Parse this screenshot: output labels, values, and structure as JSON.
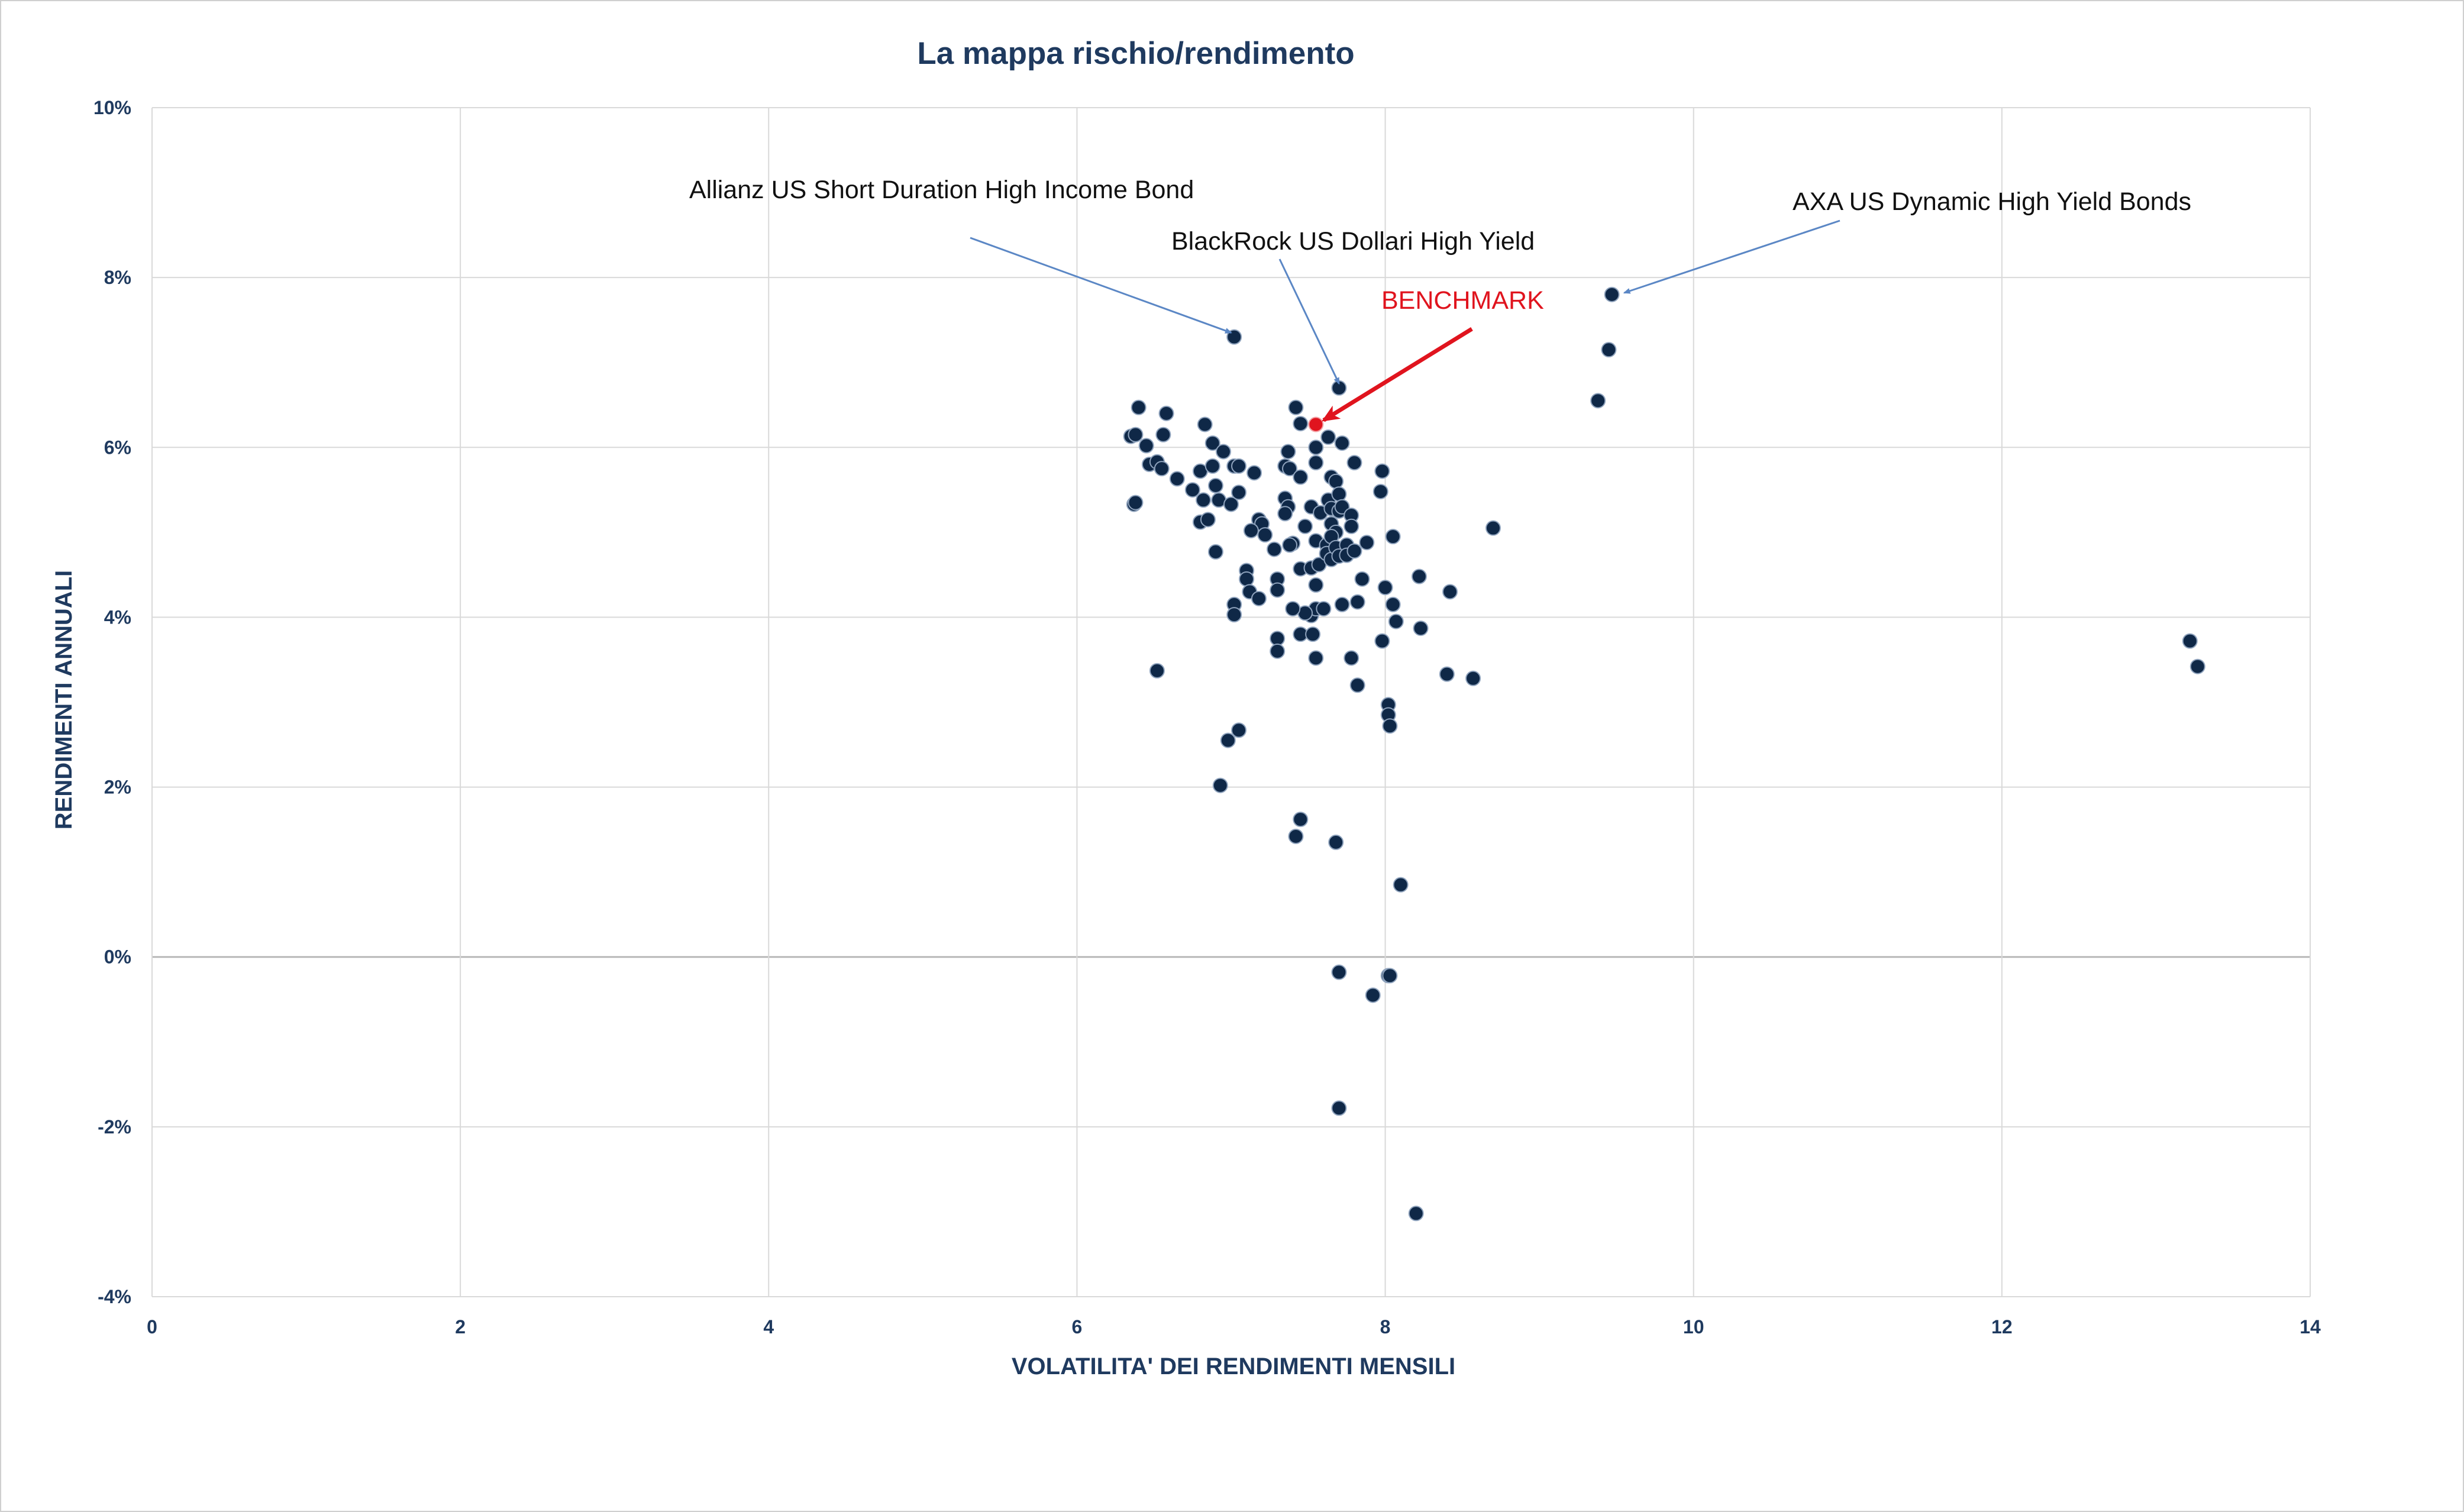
{
  "chart_data": {
    "type": "scatter",
    "title": "La mappa rischio/rendimento",
    "xlabel": "VOLATILITA' DEI RENDIMENTI MENSILI",
    "ylabel": "RENDIMENTI ANNUALI",
    "xlim": [
      0,
      14
    ],
    "ylim": [
      -4,
      10
    ],
    "x_ticks": [
      0,
      2,
      4,
      6,
      8,
      10,
      12,
      14
    ],
    "x_tick_labels": [
      "0",
      "2",
      "4",
      "6",
      "8",
      "10",
      "12",
      "14"
    ],
    "y_ticks": [
      -4,
      -2,
      0,
      2,
      4,
      6,
      8,
      10
    ],
    "y_tick_labels": [
      "-4%",
      "-2%",
      "0%",
      "2%",
      "4%",
      "6%",
      "8%",
      "10%"
    ],
    "grid": true,
    "colors": {
      "points": "#0f2847",
      "benchmark": "#e0141e",
      "annotation_arrow": "#5b87c5",
      "benchmark_arrow": "#e0141e",
      "text": "#1f3a5f"
    },
    "benchmark": {
      "x": 7.55,
      "y": 6.27,
      "label": "BENCHMARK"
    },
    "annotations": [
      {
        "text": "Allianz US Short Duration High Income Bond",
        "target": [
          7.0,
          7.35
        ]
      },
      {
        "text": "BlackRock US Dollari High Yield",
        "target": [
          7.7,
          6.75
        ]
      },
      {
        "text": "AXA US Dynamic High Yield Bonds",
        "target": [
          9.55,
          7.82
        ]
      },
      {
        "text": "BENCHMARK",
        "target": [
          7.6,
          6.32
        ]
      }
    ],
    "points": [
      [
        7.02,
        7.3
      ],
      [
        7.7,
        6.7
      ],
      [
        9.47,
        7.8
      ],
      [
        9.45,
        7.15
      ],
      [
        9.38,
        6.55
      ],
      [
        13.22,
        3.72
      ],
      [
        13.27,
        3.42
      ],
      [
        6.35,
        6.13
      ],
      [
        6.38,
        6.15
      ],
      [
        6.4,
        6.47
      ],
      [
        6.45,
        6.02
      ],
      [
        6.47,
        5.8
      ],
      [
        6.52,
        5.83
      ],
      [
        6.55,
        5.75
      ],
      [
        6.56,
        6.15
      ],
      [
        6.58,
        6.4
      ],
      [
        6.65,
        5.63
      ],
      [
        6.37,
        5.33
      ],
      [
        6.38,
        5.35
      ],
      [
        6.75,
        5.5
      ],
      [
        6.8,
        5.72
      ],
      [
        6.83,
        6.27
      ],
      [
        6.88,
        5.78
      ],
      [
        6.88,
        6.05
      ],
      [
        6.9,
        5.55
      ],
      [
        6.92,
        5.38
      ],
      [
        6.95,
        5.95
      ],
      [
        6.8,
        5.12
      ],
      [
        6.85,
        5.15
      ],
      [
        6.82,
        5.38
      ],
      [
        7.0,
        5.33
      ],
      [
        7.02,
        5.78
      ],
      [
        7.05,
        5.78
      ],
      [
        7.05,
        5.47
      ],
      [
        7.15,
        5.7
      ],
      [
        7.18,
        5.15
      ],
      [
        7.2,
        5.1
      ],
      [
        7.13,
        5.02
      ],
      [
        6.9,
        4.77
      ],
      [
        7.1,
        4.55
      ],
      [
        7.1,
        4.45
      ],
      [
        7.12,
        4.3
      ],
      [
        7.18,
        4.22
      ],
      [
        7.22,
        4.97
      ],
      [
        7.28,
        4.8
      ],
      [
        7.3,
        4.45
      ],
      [
        7.3,
        4.32
      ],
      [
        7.02,
        4.15
      ],
      [
        7.02,
        4.03
      ],
      [
        7.3,
        3.75
      ],
      [
        7.3,
        3.6
      ],
      [
        6.52,
        3.37
      ],
      [
        7.05,
        2.67
      ],
      [
        6.98,
        2.55
      ],
      [
        6.93,
        2.02
      ],
      [
        7.35,
        5.78
      ],
      [
        7.37,
        5.95
      ],
      [
        7.35,
        5.4
      ],
      [
        7.37,
        5.3
      ],
      [
        7.35,
        5.22
      ],
      [
        7.38,
        5.75
      ],
      [
        7.42,
        6.47
      ],
      [
        7.45,
        6.28
      ],
      [
        7.45,
        5.65
      ],
      [
        7.4,
        4.87
      ],
      [
        7.38,
        4.85
      ],
      [
        7.45,
        4.57
      ],
      [
        7.48,
        5.07
      ],
      [
        7.55,
        6.0
      ],
      [
        7.55,
        5.82
      ],
      [
        7.52,
        5.3
      ],
      [
        7.58,
        5.23
      ],
      [
        7.55,
        4.9
      ],
      [
        7.52,
        4.58
      ],
      [
        7.55,
        4.38
      ],
      [
        7.57,
        4.62
      ],
      [
        7.52,
        4.02
      ],
      [
        7.55,
        4.1
      ],
      [
        7.48,
        4.05
      ],
      [
        7.4,
        4.1
      ],
      [
        7.45,
        3.8
      ],
      [
        7.53,
        3.8
      ],
      [
        7.55,
        3.52
      ],
      [
        7.6,
        4.1
      ],
      [
        7.62,
        4.85
      ],
      [
        7.63,
        6.12
      ],
      [
        7.65,
        5.65
      ],
      [
        7.63,
        5.38
      ],
      [
        7.65,
        5.28
      ],
      [
        7.65,
        5.1
      ],
      [
        7.68,
        5.6
      ],
      [
        7.7,
        5.45
      ],
      [
        7.7,
        5.25
      ],
      [
        7.68,
        5.0
      ],
      [
        7.65,
        4.95
      ],
      [
        7.62,
        4.75
      ],
      [
        7.65,
        4.68
      ],
      [
        7.68,
        4.82
      ],
      [
        7.7,
        4.72
      ],
      [
        7.72,
        6.05
      ],
      [
        7.72,
        5.3
      ],
      [
        7.75,
        4.85
      ],
      [
        7.75,
        4.73
      ],
      [
        7.72,
        4.15
      ],
      [
        7.78,
        5.2
      ],
      [
        7.78,
        5.07
      ],
      [
        7.8,
        5.82
      ],
      [
        7.8,
        4.78
      ],
      [
        7.82,
        4.18
      ],
      [
        7.78,
        3.52
      ],
      [
        7.82,
        3.2
      ],
      [
        7.85,
        4.45
      ],
      [
        7.88,
        4.88
      ],
      [
        7.97,
        5.48
      ],
      [
        7.98,
        5.72
      ],
      [
        8.0,
        4.35
      ],
      [
        8.05,
        4.95
      ],
      [
        8.05,
        4.15
      ],
      [
        8.07,
        3.95
      ],
      [
        7.98,
        3.72
      ],
      [
        8.02,
        2.97
      ],
      [
        8.02,
        2.85
      ],
      [
        8.03,
        2.72
      ],
      [
        8.22,
        4.48
      ],
      [
        8.23,
        3.87
      ],
      [
        8.42,
        4.3
      ],
      [
        8.4,
        3.33
      ],
      [
        8.57,
        3.28
      ],
      [
        8.7,
        5.05
      ],
      [
        7.45,
        1.62
      ],
      [
        7.42,
        1.42
      ],
      [
        7.68,
        1.35
      ],
      [
        8.1,
        0.85
      ],
      [
        7.7,
        -0.18
      ],
      [
        8.02,
        -0.22
      ],
      [
        8.03,
        -0.22
      ],
      [
        7.92,
        -0.45
      ],
      [
        7.7,
        -1.78
      ],
      [
        8.2,
        -3.02
      ]
    ]
  }
}
